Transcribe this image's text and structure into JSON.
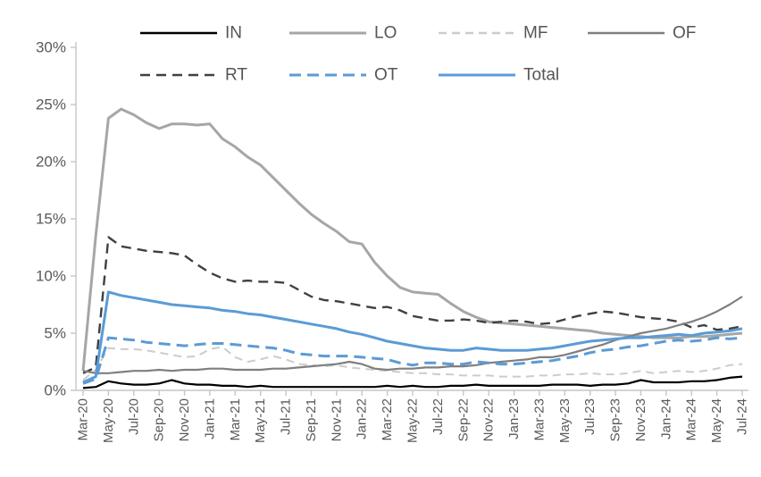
{
  "chart_data": {
    "type": "line",
    "title": "",
    "x": [
      "Mar-20",
      "Apr-20",
      "May-20",
      "Jun-20",
      "Jul-20",
      "Aug-20",
      "Sep-20",
      "Oct-20",
      "Nov-20",
      "Dec-20",
      "Jan-21",
      "Feb-21",
      "Mar-21",
      "Apr-21",
      "May-21",
      "Jun-21",
      "Jul-21",
      "Aug-21",
      "Sep-21",
      "Oct-21",
      "Nov-21",
      "Dec-21",
      "Jan-22",
      "Feb-22",
      "Mar-22",
      "Apr-22",
      "May-22",
      "Jun-22",
      "Jul-22",
      "Aug-22",
      "Sep-22",
      "Oct-22",
      "Nov-22",
      "Dec-22",
      "Jan-23",
      "Feb-23",
      "Mar-23",
      "Apr-23",
      "May-23",
      "Jun-23",
      "Jul-23",
      "Aug-23",
      "Sep-23",
      "Oct-23",
      "Nov-23",
      "Dec-23",
      "Jan-24",
      "Feb-24",
      "Mar-24",
      "Apr-24",
      "May-24",
      "Jun-24",
      "Jul-24"
    ],
    "x_tick_step": 2,
    "x_tick_labels_shown": [
      "Mar-20",
      "May-20",
      "Jul-20",
      "Sep-20",
      "Nov-20",
      "Jan-21",
      "Mar-21",
      "May-21",
      "Jul-21",
      "Sep-21",
      "Nov-21",
      "Jan-22",
      "Mar-22",
      "May-22",
      "Jul-22",
      "Sep-22",
      "Nov-22",
      "Jan-23",
      "Mar-23",
      "May-23",
      "Jul-23",
      "Sep-23",
      "Nov-23",
      "Jan-24",
      "Mar-24",
      "May-24",
      "Jul-24"
    ],
    "y_axis": {
      "ticks": [
        "0%",
        "5%",
        "10%",
        "15%",
        "20%",
        "25%",
        "30%"
      ],
      "min": 0,
      "max": 30,
      "unit": "%"
    },
    "grid": false,
    "legend_position": "top",
    "legend_rows": [
      [
        "IN",
        "LO",
        "MF",
        "OF"
      ],
      [
        "RT",
        "OT",
        "Total"
      ]
    ],
    "series": [
      {
        "name": "IN",
        "color": "#000000",
        "dash": null,
        "width": 2.2,
        "values": [
          0.2,
          0.3,
          0.8,
          0.6,
          0.5,
          0.5,
          0.6,
          0.9,
          0.6,
          0.5,
          0.5,
          0.4,
          0.4,
          0.3,
          0.4,
          0.3,
          0.3,
          0.3,
          0.3,
          0.3,
          0.3,
          0.3,
          0.3,
          0.3,
          0.4,
          0.3,
          0.4,
          0.3,
          0.3,
          0.4,
          0.4,
          0.5,
          0.4,
          0.4,
          0.4,
          0.4,
          0.4,
          0.5,
          0.5,
          0.5,
          0.4,
          0.5,
          0.5,
          0.6,
          0.9,
          0.7,
          0.7,
          0.7,
          0.8,
          0.8,
          0.9,
          1.1,
          1.2
        ]
      },
      {
        "name": "LO",
        "color": "#A6A6A6",
        "dash": null,
        "width": 3,
        "values": [
          1.7,
          13.5,
          23.8,
          24.6,
          24.1,
          23.4,
          22.9,
          23.3,
          23.3,
          23.2,
          23.3,
          22.0,
          21.3,
          20.4,
          19.7,
          18.6,
          17.5,
          16.4,
          15.4,
          14.6,
          13.9,
          13.0,
          12.8,
          11.2,
          10.0,
          9.0,
          8.6,
          8.5,
          8.4,
          7.6,
          6.9,
          6.4,
          6.0,
          5.9,
          5.8,
          5.7,
          5.6,
          5.5,
          5.4,
          5.3,
          5.2,
          5.0,
          4.9,
          4.8,
          4.7,
          4.6,
          4.6,
          4.6,
          4.7,
          4.7,
          4.8,
          4.9,
          5.0
        ]
      },
      {
        "name": "MF",
        "color": "#CCCCCC",
        "dash": "9,6",
        "width": 2,
        "values": [
          0.9,
          1.8,
          3.7,
          3.6,
          3.6,
          3.5,
          3.3,
          3.1,
          2.9,
          3.0,
          3.6,
          3.8,
          2.9,
          2.5,
          2.7,
          3.0,
          2.7,
          2.3,
          2.2,
          2.1,
          2.2,
          2.0,
          1.9,
          1.8,
          1.7,
          1.6,
          1.5,
          1.5,
          1.4,
          1.4,
          1.3,
          1.3,
          1.3,
          1.2,
          1.2,
          1.2,
          1.3,
          1.3,
          1.4,
          1.4,
          1.5,
          1.4,
          1.4,
          1.5,
          1.7,
          1.5,
          1.6,
          1.7,
          1.6,
          1.7,
          1.9,
          2.2,
          2.3
        ]
      },
      {
        "name": "OF",
        "color": "#7F7F7F",
        "dash": null,
        "width": 2.2,
        "values": [
          1.7,
          1.5,
          1.5,
          1.6,
          1.7,
          1.7,
          1.8,
          1.7,
          1.8,
          1.8,
          1.9,
          1.9,
          1.8,
          1.8,
          1.8,
          1.9,
          1.9,
          2.0,
          2.1,
          2.2,
          2.3,
          2.5,
          2.3,
          1.9,
          1.8,
          1.9,
          1.9,
          2.0,
          2.0,
          2.1,
          2.1,
          2.2,
          2.4,
          2.5,
          2.6,
          2.7,
          2.9,
          2.9,
          3.1,
          3.4,
          3.7,
          4.0,
          4.4,
          4.7,
          5.0,
          5.2,
          5.4,
          5.7,
          6.0,
          6.4,
          6.9,
          7.5,
          8.2
        ]
      },
      {
        "name": "RT",
        "color": "#404040",
        "dash": "11,7",
        "width": 2.4,
        "values": [
          1.5,
          2.0,
          13.4,
          12.6,
          12.4,
          12.2,
          12.1,
          12.0,
          11.8,
          11.0,
          10.3,
          9.8,
          9.5,
          9.6,
          9.5,
          9.5,
          9.4,
          8.8,
          8.2,
          7.9,
          7.8,
          7.6,
          7.4,
          7.2,
          7.3,
          7.0,
          6.5,
          6.3,
          6.1,
          6.1,
          6.2,
          6.1,
          5.9,
          6.0,
          6.1,
          6.0,
          5.8,
          5.9,
          6.2,
          6.5,
          6.7,
          6.9,
          6.8,
          6.6,
          6.4,
          6.3,
          6.2,
          6.0,
          5.5,
          5.7,
          5.3,
          5.4,
          5.6
        ]
      },
      {
        "name": "OT",
        "color": "#5B9BD5",
        "dash": "13,7",
        "width": 3,
        "values": [
          0.6,
          1.0,
          4.6,
          4.5,
          4.4,
          4.2,
          4.1,
          4.0,
          3.9,
          4.0,
          4.1,
          4.1,
          4.0,
          3.9,
          3.8,
          3.7,
          3.5,
          3.2,
          3.1,
          3.0,
          3.0,
          3.0,
          2.9,
          2.8,
          2.7,
          2.4,
          2.2,
          2.4,
          2.4,
          2.3,
          2.3,
          2.5,
          2.4,
          2.3,
          2.3,
          2.4,
          2.5,
          2.6,
          2.8,
          3.0,
          3.3,
          3.5,
          3.6,
          3.8,
          3.9,
          4.1,
          4.3,
          4.4,
          4.3,
          4.4,
          4.6,
          4.5,
          4.6
        ]
      },
      {
        "name": "Total",
        "color": "#5B9BD5",
        "dash": null,
        "width": 3,
        "values": [
          0.7,
          1.2,
          8.6,
          8.3,
          8.1,
          7.9,
          7.7,
          7.5,
          7.4,
          7.3,
          7.2,
          7.0,
          6.9,
          6.7,
          6.6,
          6.4,
          6.2,
          6.0,
          5.8,
          5.6,
          5.4,
          5.1,
          4.9,
          4.6,
          4.3,
          4.1,
          3.9,
          3.7,
          3.6,
          3.5,
          3.5,
          3.7,
          3.6,
          3.5,
          3.5,
          3.5,
          3.6,
          3.7,
          3.9,
          4.1,
          4.3,
          4.4,
          4.5,
          4.6,
          4.6,
          4.7,
          4.8,
          4.9,
          4.8,
          5.0,
          5.1,
          5.2,
          5.4
        ]
      }
    ],
    "colors": {
      "axis": "#c6c6c6",
      "tick_label": "#595959",
      "legend_label": "#555555"
    }
  }
}
